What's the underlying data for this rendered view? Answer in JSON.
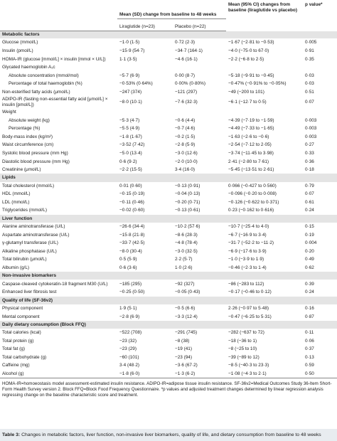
{
  "header": {
    "group": "Mean (SD) change from baseline to 48 weeks",
    "liraglutide": "Liraglutide (n=23)",
    "placebo": "Placebo (n=22)",
    "ci": "Mean (95% CI) changes from baseline (liraglutide vs placebo)",
    "p": "p value*"
  },
  "sections": [
    {
      "title": "Metabolic factors",
      "rows": [
        {
          "label": "Glucose (mmol/L)",
          "values": [
            "−1·0 (1·5)",
            "0·72 (2·3)",
            "−1·67 (−2·81 to −0·53)",
            "0·005"
          ]
        },
        {
          "label": "Insulin (pmol/L)",
          "values": [
            "−15·9 (54·7)",
            "−34·7 (164·1)",
            "−4·0 (−75·0 to 67·0)",
            "0·91"
          ]
        },
        {
          "label": "HOMA-IR (glucose [mmol/L] × insulin [mmol × U/L])",
          "values": [
            "1·1 (3·5)",
            "−4·6 (16·1)",
            "−2·2 (−6·8 to 2·5)",
            "0·35"
          ]
        },
        {
          "label": "Glycated haemoglobin A₁c",
          "rows": [
            {
              "label": "Absolute concentration (mmol/mol)",
              "values": [
                "−5·7 (6·9)",
                "0·00 (8·7)",
                "−5·18 (−9·91 to −0·45)",
                "0·03"
              ]
            },
            {
              "label": "Percentage of total haemoglobin (%)",
              "values": [
                "−0·53% (0·64%)",
                "0·00% (0·80%)",
                "−0·47% (−0·91% to −0·05%)",
                "0·03"
              ]
            }
          ]
        },
        {
          "label": "Non-esterified fatty acids (μmol/L)",
          "values": [
            "−247 (374)",
            "−121 (297)",
            "−49 (−200 to 101)",
            "0·51"
          ]
        },
        {
          "label": "ADIPO-IR (fasting non-essential fatty acid [μmol/L] × insulin [pmol/L])",
          "values": [
            "−8·0 (10·1)",
            "−7·6 (32·3)",
            "−6·1 (−12·7 to 0·5)",
            "0·07"
          ]
        },
        {
          "label": "Weight",
          "rows": [
            {
              "label": "Absolute weight (kg)",
              "values": [
                "−5·3 (4·7)",
                "−0·6 (4·4)",
                "−4·39 (−7·19 to −1·59)",
                "0·003"
              ]
            },
            {
              "label": "Percentage (%)",
              "values": [
                "−5·5 (4·9)",
                "−0·7 (4·6)",
                "−4·49 (−7·33 to −1·65)",
                "0·003"
              ]
            }
          ]
        },
        {
          "label": "Body-mass index (kg/m²)",
          "values": [
            "−1·8 (1·67)",
            "−0·2 (1·5)",
            "−1·63 (−2·6 to −0·6)",
            "0·003"
          ]
        },
        {
          "label": "Waist circumference (cm)",
          "values": [
            "−3·52 (7·42)",
            "−2·8 (5·9)",
            "−2·54 (−7·12 to 2·05)",
            "0·27"
          ]
        },
        {
          "label": "Systolic blood pressure (mm Hg)",
          "values": [
            "−5·0 (13·4)",
            "−3·0 (12·6)",
            "−3·74 (−11·45 to 3·98)",
            "0·33"
          ]
        },
        {
          "label": "Diastolic blood pressure (mm Hg)",
          "values": [
            "0·6 (9·2)",
            "−2·0 (10·0)",
            "2·41 (−2·80 to 7·61)",
            "0·36"
          ]
        },
        {
          "label": "Creatinine (μmol/L)",
          "values": [
            "−2·2 (15·5)",
            "3·4 (16·0)",
            "−5·45 (−13·51 to 2·61)",
            "0·18"
          ]
        }
      ]
    },
    {
      "title": "Lipids",
      "rows": [
        {
          "label": "Total cholesterol (mmol/L)",
          "values": [
            "0·01 (0·60)",
            "−0·13 (0·91)",
            "0·066 (−0·427 to 0·560)",
            "0·79"
          ]
        },
        {
          "label": "HDL (mmol/L)",
          "values": [
            "−0·15 (0·19)",
            "−0·04 (0·13)",
            "−0·096 (−0·20 to 0·008)",
            "0·07"
          ]
        },
        {
          "label": "LDL (mmol/L)",
          "values": [
            "−0·11 (0·46)",
            "−0·20 (0·71)",
            "−0·126 (−0·622 to 0·371)",
            "0·61"
          ]
        },
        {
          "label": "Triglycerides (mmol/L)",
          "values": [
            "−0·02 (0·60)",
            "−0·13 (0·61)",
            "0·23 (−0·162 to 0·616)",
            "0·24"
          ]
        }
      ]
    },
    {
      "title": "Liver function",
      "rows": [
        {
          "label": "Alanine aminotransferase (U/L)",
          "values": [
            "−26·6 (34·4)",
            "−10·2 (57·6)",
            "−10·7 (−25·4 to 4·0)",
            "0·15"
          ]
        },
        {
          "label": "Aspartate aminotransferase (U/L)",
          "values": [
            "−15·8 (21·8)",
            "−8·6 (28·3)",
            "−6·7 (−16·9 to 3·4)",
            "0·19"
          ]
        },
        {
          "label": "γ-glutamyl transferase (U/L)",
          "values": [
            "−33·7 (42·5)",
            "−4·8 (78·4)",
            "−31·7 (−52·2 to −11·2)",
            "0·004"
          ]
        },
        {
          "label": "Alkaline phosphatase (U/L)",
          "values": [
            "−8·0 (30·4)",
            "−3·0 (32·5)",
            "−6·9 (−17·6 to 3·9)",
            "0·20"
          ]
        },
        {
          "label": "Total bilirubin (μmol/L)",
          "values": [
            "0·5 (5·9)",
            "2·2 (5·7)",
            "−1·0 (−3·9 to 1·9)",
            "0·49"
          ]
        },
        {
          "label": "Albumin (g/L)",
          "values": [
            "0·6 (3·6)",
            "1·0 (2·6)",
            "−0·46 (−2·3 to 1·4)",
            "0·62"
          ]
        }
      ]
    },
    {
      "title": "Non-invasive biomarkers",
      "rows": [
        {
          "label": "Caspase-cleaved cytokeratin-18 fragment M30 (U/L)",
          "values": [
            "−185 (295)",
            "−92 (327)",
            "−86 (−283 to 112)",
            "0·39"
          ]
        },
        {
          "label": "Enhanced liver fibrosis test",
          "values": [
            "−0·25 (0·50)",
            "−0·05 (0·43)",
            "−0·17 (−0·46 to 0·12)",
            "0·24"
          ]
        }
      ]
    },
    {
      "title": "Quality of life (SF-36v2)",
      "rows": [
        {
          "label": "Physical component",
          "values": [
            "1·9 (5·1)",
            "−0·5 (6·6)",
            "2·26 (−0·97 to 5·48)",
            "0·16"
          ]
        },
        {
          "label": "Mental component",
          "values": [
            "−2·8 (6·9)",
            "−3·3 (12·4)",
            "−0·47 (−6·25 to 5·31)",
            "0·87"
          ]
        }
      ]
    },
    {
      "title": "Daily dietary consumption (Block FFQ)",
      "rows": [
        {
          "label": "Total calories (kcal)",
          "values": [
            "−522 (708)",
            "−291 (745)",
            "−282 (−637 to 72)",
            "0·11"
          ]
        },
        {
          "label": "Total protein (g)",
          "values": [
            "−23 (32)",
            "−8 (38)",
            "−18 (−36 to 1)",
            "0·06"
          ]
        },
        {
          "label": "Total fat (g)",
          "values": [
            "−23 (29)",
            "−19 (41)",
            "−8 (−25 to 10)",
            "0·37"
          ]
        },
        {
          "label": "Total carbohydrate (g)",
          "values": [
            "−60 (101)",
            "−23 (94)",
            "−39 (−89 to 12)",
            "0·13"
          ]
        },
        {
          "label": "Caffeine (mg)",
          "values": [
            "3·4 (48·2)",
            "−3·6 (67·2)",
            "−8·5 (−40·3 to 23·3)",
            "0·59"
          ]
        },
        {
          "label": "Alcohol (g)",
          "values": [
            "−1·8 (6·0)",
            "−1·3 (6·2)",
            "−1·08 (−4·3 to 2·1)",
            "0·50"
          ]
        }
      ]
    }
  ],
  "footnote": "HOMA-IR=homoeostasis model assessment-estimated insulin resistance. ADIPO-IR=adipose tissue insulin resistance. SF-36v2=Medical Outcomes Study 36-Item Short-Form Health Survey version 2. Block FFQ=Block Food Frequency Questionnaire. *p values and adjusted treatment changes determined by linear regression analysis regressing change on the baseline characteristic score and treatment.",
  "caption": {
    "label": "Table 3:",
    "text": "Changes in metabolic factors, liver function, non-invasive liver biomarkers, quality of life, and dietary consumption from baseline to 48 weeks"
  }
}
